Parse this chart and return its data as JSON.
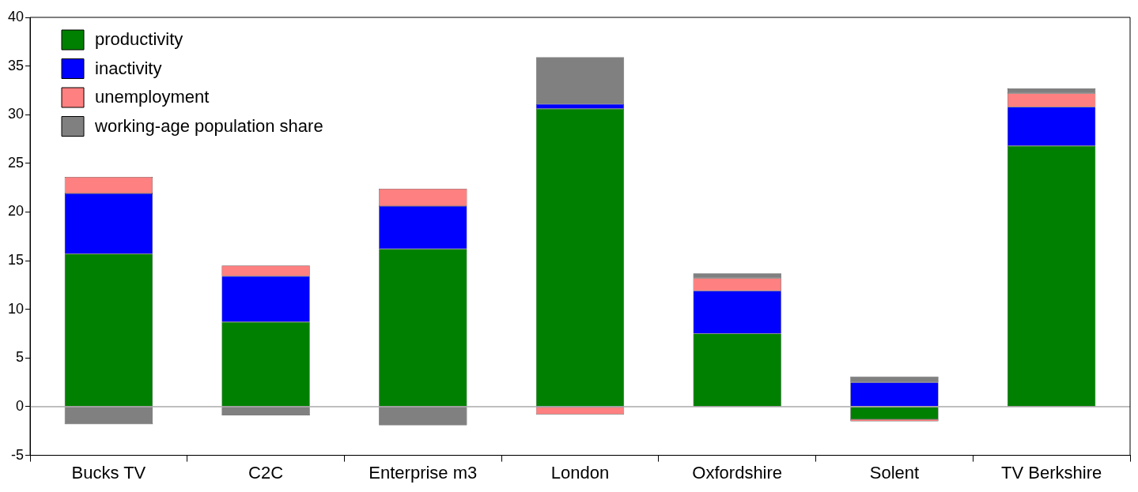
{
  "chart_data": {
    "type": "bar",
    "stacked": true,
    "categories": [
      "Bucks TV",
      "C2C",
      "Enterprise m3",
      "London",
      "Oxfordshire",
      "Solent",
      "TV Berkshire"
    ],
    "series": [
      {
        "name": "productivity",
        "color": "#008000",
        "values": [
          15.7,
          8.7,
          16.2,
          30.6,
          7.5,
          -1.3,
          26.8
        ]
      },
      {
        "name": "inactivity",
        "color": "#0000ff",
        "values": [
          6.2,
          4.7,
          4.4,
          0.5,
          4.4,
          2.5,
          4.0
        ]
      },
      {
        "name": "unemployment",
        "color": "#ff8080",
        "values": [
          1.7,
          1.1,
          1.8,
          -0.8,
          1.3,
          -0.2,
          1.4
        ]
      },
      {
        "name": "working-age population share",
        "color": "#808080",
        "values": [
          -1.8,
          -0.9,
          -1.9,
          4.8,
          0.5,
          0.6,
          0.5
        ]
      }
    ],
    "ylim": [
      -5,
      40
    ],
    "yticks": [
      -5,
      0,
      5,
      10,
      15,
      20,
      25,
      30,
      35,
      40
    ],
    "grid": false,
    "legend": "top left",
    "ref_lines": [
      {
        "axis": "y",
        "value": 0,
        "color": "#808080"
      }
    ]
  }
}
